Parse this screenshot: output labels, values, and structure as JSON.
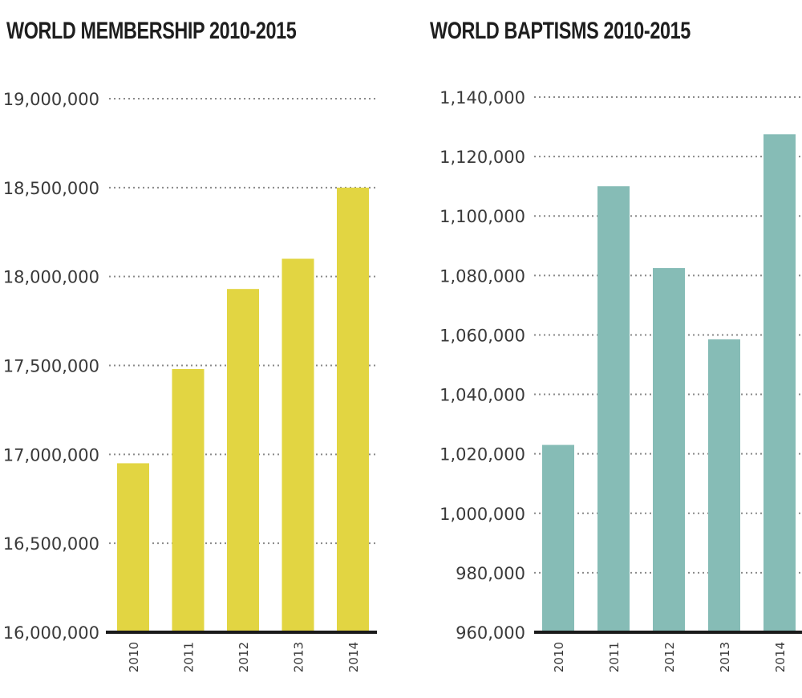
{
  "chart_data": [
    {
      "type": "bar",
      "title": "WORLD MEMBERSHIP 2010-2015",
      "categories": [
        "2010",
        "2011",
        "2012",
        "2013",
        "2014"
      ],
      "values": [
        16950000,
        17480000,
        17930000,
        18100000,
        18500000
      ],
      "ylim": [
        16000000,
        19000000
      ],
      "yticks": [
        16000000,
        16500000,
        17000000,
        17500000,
        18000000,
        18500000,
        19000000
      ],
      "ytick_labels": [
        "16,000,000",
        "16,500,000",
        "17,000,000",
        "17,500,000",
        "18,000,000",
        "18,500,000",
        "19,000,000"
      ],
      "xlabel": "",
      "ylabel": "",
      "grid": true,
      "bar_color": "#e2d542"
    },
    {
      "type": "bar",
      "title": "WORLD BAPTISMS 2010-2015",
      "categories": [
        "2010",
        "2011",
        "2012",
        "2013",
        "2014"
      ],
      "values": [
        1023000,
        1110000,
        1082500,
        1058500,
        1127500
      ],
      "ylim": [
        960000,
        1140000
      ],
      "yticks": [
        960000,
        980000,
        1000000,
        1020000,
        1040000,
        1060000,
        1080000,
        1100000,
        1120000,
        1140000
      ],
      "ytick_labels": [
        "960,000",
        "980,000",
        "1,000,000",
        "1,020,000",
        "1,040,000",
        "1,060,000",
        "1,080,000",
        "1,100,000",
        "1,120,000",
        "1,140,000"
      ],
      "xlabel": "",
      "ylabel": "",
      "grid": true,
      "bar_color": "#86bcb6"
    }
  ]
}
